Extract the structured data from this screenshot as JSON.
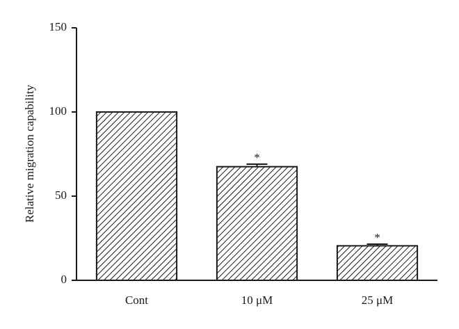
{
  "chart_data": {
    "type": "bar",
    "ylabel": "Relative migration capability",
    "categories": [
      "Cont",
      "10 μM",
      "25 μM"
    ],
    "values": [
      100,
      67.5,
      20.5
    ],
    "errors": [
      null,
      1.5,
      1
    ],
    "significance": [
      null,
      "*",
      "*"
    ],
    "color": "#1a1a1a",
    "ylim": [
      0,
      150
    ],
    "yticks": [
      0,
      50,
      100,
      150
    ],
    "grid": false
  }
}
